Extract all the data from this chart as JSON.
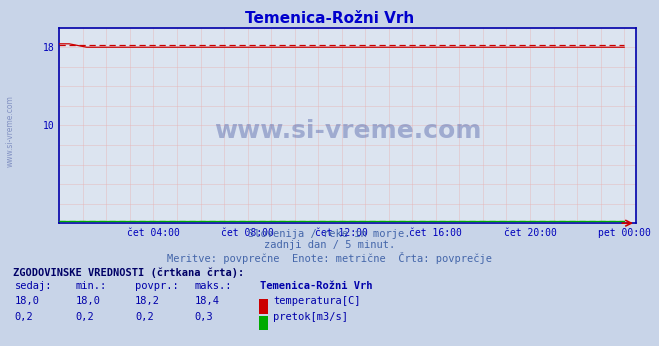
{
  "title": "Temenica-Rožni Vrh",
  "title_color": "#0000cc",
  "bg_color": "#c8d4e8",
  "plot_bg_color": "#dce4f0",
  "x_labels": [
    "čet 04:00",
    "čet 08:00",
    "čet 12:00",
    "čet 16:00",
    "čet 20:00",
    "pet 00:00"
  ],
  "x_ticks": [
    4,
    8,
    12,
    16,
    20,
    24
  ],
  "x_min": 0,
  "x_max": 24.5,
  "y_min": 0,
  "y_max": 20,
  "y_ticks_major": [
    10,
    18
  ],
  "temp_value": 18.0,
  "temp_avg": 18.2,
  "flow_value": 0.2,
  "flow_avg": 0.2,
  "temp_color": "#cc0000",
  "flow_color": "#00aa00",
  "axis_color": "#0000bb",
  "arrow_color": "#cc0000",
  "watermark": "www.si-vreme.com",
  "watermark_color": "#5566aa",
  "watermark_alpha": 0.45,
  "subtitle1": "Slovenija / reke in morje.",
  "subtitle2": "zadnji dan / 5 minut.",
  "subtitle3": "Meritve: povprečne  Enote: metrične  Črta: povprečje",
  "subtitle_color": "#4466aa",
  "table_header": "ZGODOVINSKE VREDNOSTI (črtkana črta):",
  "col_labels": [
    "sedaj:",
    "min.:",
    "povpr.:",
    "maks.:",
    "Temenica-Rožni Vrh"
  ],
  "row1": [
    "18,0",
    "18,0",
    "18,2",
    "18,4",
    "temperatura[C]"
  ],
  "row2": [
    "0,2",
    "0,2",
    "0,2",
    "0,3",
    "pretok[m3/s]"
  ],
  "table_color": "#0000aa",
  "table_header_color": "#000066",
  "n_points": 289,
  "left_watermark": "www.si-vreme.com",
  "minor_grid_color": "#e8b0b0",
  "major_grid_color": "#d09090",
  "minor_grid_alpha": 0.7,
  "spine_color": "#0000aa"
}
